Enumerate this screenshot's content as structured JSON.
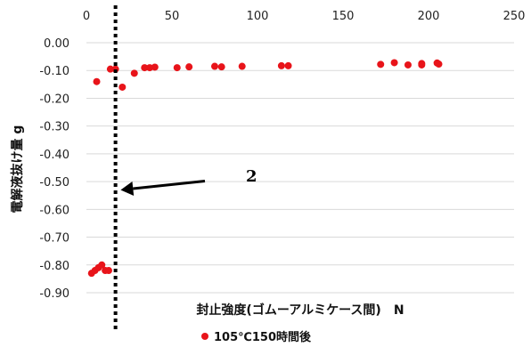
{
  "chart_data": {
    "type": "scatter",
    "xlabel": "封止強度(ゴムーアルミケース間)　N",
    "ylabel": "電解液抜け量 g",
    "xlim": [
      0,
      250
    ],
    "ylim": [
      -0.9,
      0.0
    ],
    "x_ticks": [
      "0",
      "50",
      "100",
      "150",
      "200",
      "250"
    ],
    "y_ticks": [
      "0.00",
      "-0.10",
      "-0.20",
      "-0.30",
      "-0.40",
      "-0.50",
      "-0.60",
      "-0.70",
      "-0.80",
      "-0.90"
    ],
    "x_axis_position": "top",
    "grid": {
      "y": true,
      "x": false
    },
    "legend": {
      "position": "bottom",
      "entries": [
        "105℃150時間後"
      ]
    },
    "series": [
      {
        "name": "105℃150時間後",
        "color": "#e8141a",
        "points": [
          [
            3,
            -0.83
          ],
          [
            5,
            -0.82
          ],
          [
            7,
            -0.81
          ],
          [
            9,
            -0.8
          ],
          [
            11,
            -0.82
          ],
          [
            13,
            -0.82
          ],
          [
            6,
            -0.14
          ],
          [
            14,
            -0.095
          ],
          [
            17,
            -0.095
          ],
          [
            21,
            -0.16
          ],
          [
            28,
            -0.11
          ],
          [
            34,
            -0.09
          ],
          [
            37,
            -0.09
          ],
          [
            40,
            -0.088
          ],
          [
            53,
            -0.09
          ],
          [
            60,
            -0.087
          ],
          [
            75,
            -0.085
          ],
          [
            79,
            -0.087
          ],
          [
            91,
            -0.085
          ],
          [
            114,
            -0.083
          ],
          [
            118,
            -0.083
          ],
          [
            172,
            -0.078
          ],
          [
            180,
            -0.072
          ],
          [
            188,
            -0.08
          ],
          [
            196,
            -0.075
          ],
          [
            196,
            -0.08
          ],
          [
            205,
            -0.073
          ],
          [
            206,
            -0.077
          ]
        ]
      }
    ],
    "reference_line": {
      "x": 17,
      "style": "dotted",
      "color": "#000000"
    },
    "annotations": [
      {
        "text": "2",
        "x": 83,
        "y": -0.48,
        "arrow_to": {
          "x": 20,
          "y": -0.53
        }
      }
    ]
  }
}
